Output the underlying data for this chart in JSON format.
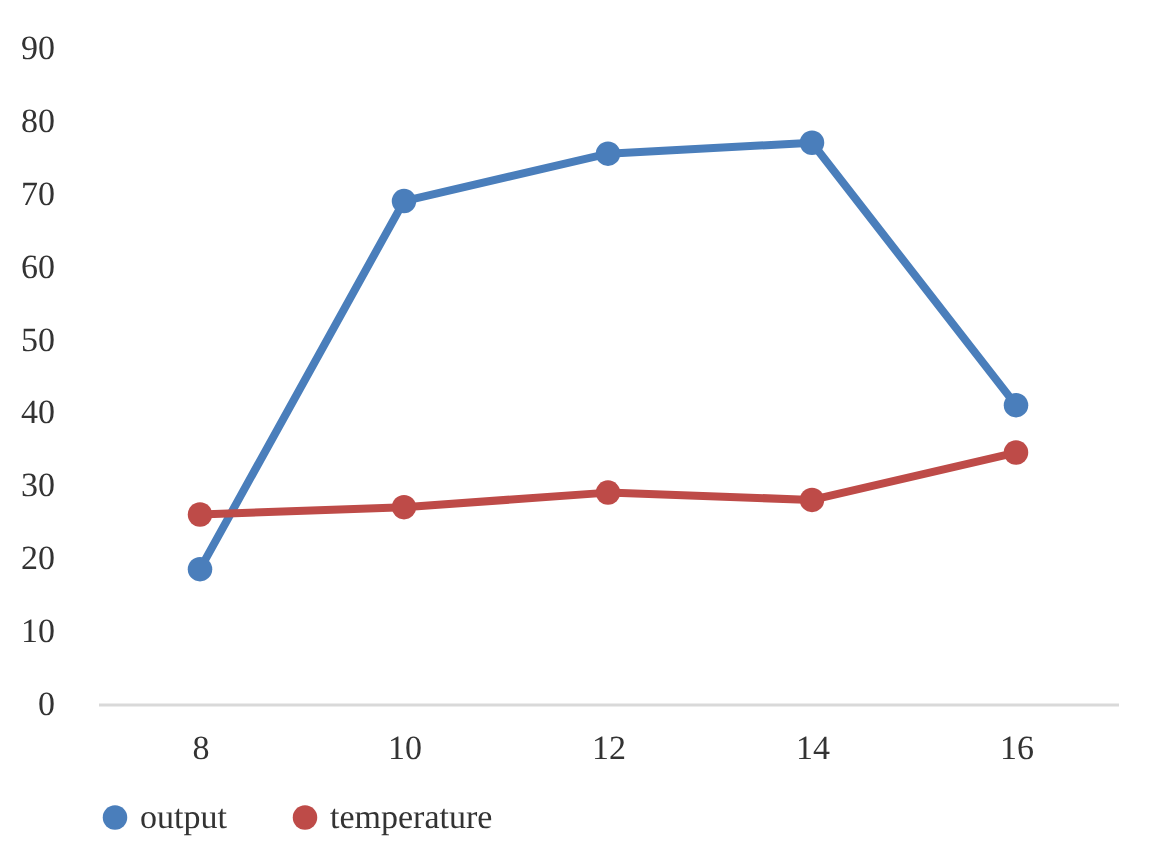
{
  "chart_data": {
    "type": "line",
    "categories": [
      "8",
      "10",
      "12",
      "14",
      "16"
    ],
    "series": [
      {
        "name": "output",
        "color": "#4a7ebb",
        "values": [
          18.5,
          69,
          75.5,
          77,
          41
        ]
      },
      {
        "name": "temperature",
        "color": "#be4b48",
        "values": [
          26,
          27,
          29,
          28,
          34.5
        ]
      }
    ],
    "ylim": [
      0,
      90
    ],
    "yticks": [
      0,
      10,
      20,
      30,
      40,
      50,
      60,
      70,
      80,
      90
    ],
    "grid": false,
    "legend": "bottom",
    "marker": "circle",
    "line_style": "solid"
  }
}
